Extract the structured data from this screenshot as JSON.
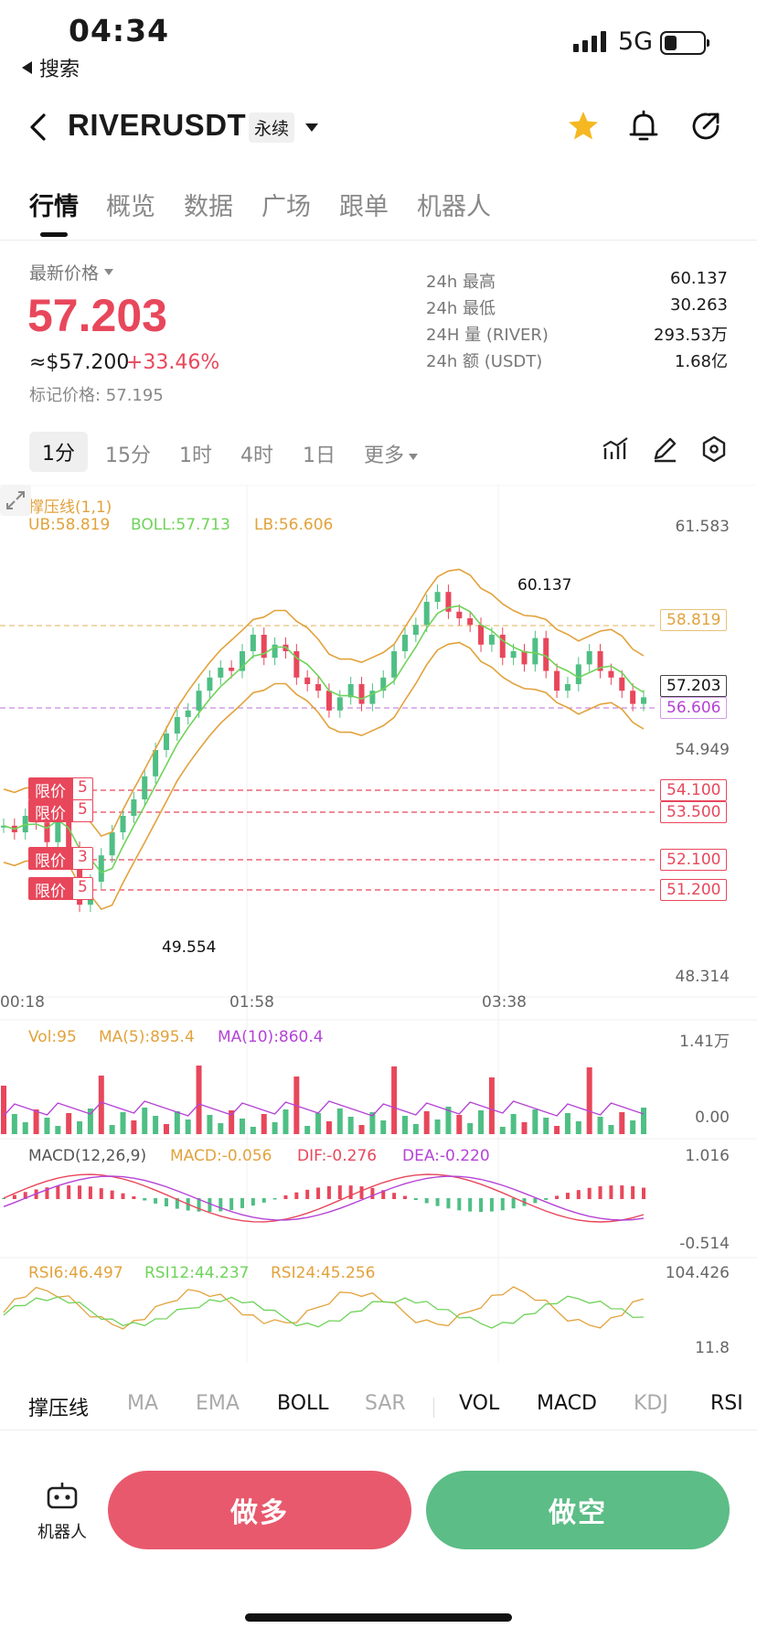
{
  "status_bar": {
    "time": "04:34",
    "back_app": "搜索",
    "network": "5G"
  },
  "header": {
    "symbol": "RIVERUSDT",
    "contract_type": "永续"
  },
  "tabs": [
    {
      "label": "行情"
    },
    {
      "label": "概览"
    },
    {
      "label": "数据"
    },
    {
      "label": "广场"
    },
    {
      "label": "跟单"
    },
    {
      "label": "机器人"
    }
  ],
  "price": {
    "latest_label": "最新价格",
    "last": "57.203",
    "usd": "≈$57.200",
    "change": "+33.46%",
    "mark": "标记价格: 57.195"
  },
  "stats": [
    {
      "key": "24h  最高",
      "value": "60.137"
    },
    {
      "key": "24h  最低",
      "value": "30.263"
    },
    {
      "key": "24H  量 (RIVER)",
      "value": "293.53万"
    },
    {
      "key": "24h  额 (USDT)",
      "value": "1.68亿"
    }
  ],
  "intervals": [
    {
      "label": "1分"
    },
    {
      "label": "15分"
    },
    {
      "label": "1时"
    },
    {
      "label": "4时"
    },
    {
      "label": "1日"
    },
    {
      "label": "更多"
    }
  ],
  "chart": {
    "indicator_title": "撑压线(1,1)",
    "ub": "UB:58.819",
    "boll": "BOLL:57.713",
    "lb": "LB:56.606",
    "axis": {
      "top": "61.583",
      "mid": "54.949",
      "bottom": "48.314",
      "high_mark": "60.137",
      "low_mark": "49.554",
      "ub_box": "58.819",
      "last_box": "57.203",
      "lb_box": "56.606"
    },
    "orders": [
      {
        "type": "限价",
        "qty": "5",
        "price": "54.100"
      },
      {
        "type": "限价",
        "qty": "5",
        "price": "53.500"
      },
      {
        "type": "限价",
        "qty": "3",
        "price": "52.100"
      },
      {
        "type": "限价",
        "qty": "5",
        "price": "51.200"
      }
    ],
    "times": [
      "00:18",
      "01:58",
      "03:38"
    ],
    "vol": {
      "vol": "Vol:95",
      "ma5": "MA(5):895.4",
      "ma10": "MA(10):860.4",
      "max": "1.41万",
      "min": "0.00"
    },
    "macd": {
      "title": "MACD(12,26,9)",
      "macd": "MACD:-0.056",
      "dif": "DIF:-0.276",
      "dea": "DEA:-0.220",
      "max": "1.016",
      "min": "-0.514"
    },
    "rsi": {
      "r6": "RSI6:46.497",
      "r12": "RSI12:44.237",
      "r24": "RSI24:45.256",
      "max": "104.426",
      "min": "11.8"
    },
    "colors": {
      "up": "#4fbf84",
      "down": "#e8475b",
      "band": "#e2a23c",
      "mid": "#6fd35a",
      "purple": "#b543d6"
    }
  },
  "indicator_tabs": [
    {
      "label": "撑压线",
      "on": true
    },
    {
      "label": "MA",
      "on": false
    },
    {
      "label": "EMA",
      "on": false
    },
    {
      "label": "BOLL",
      "on": true
    },
    {
      "label": "SAR",
      "on": false
    },
    {
      "label": "VOL",
      "on": true
    },
    {
      "label": "MACD",
      "on": true
    },
    {
      "label": "KDJ",
      "on": false
    },
    {
      "label": "RSI",
      "on": true
    }
  ],
  "actions": {
    "robot": "机器人",
    "long": "做多",
    "short": "做空"
  }
}
